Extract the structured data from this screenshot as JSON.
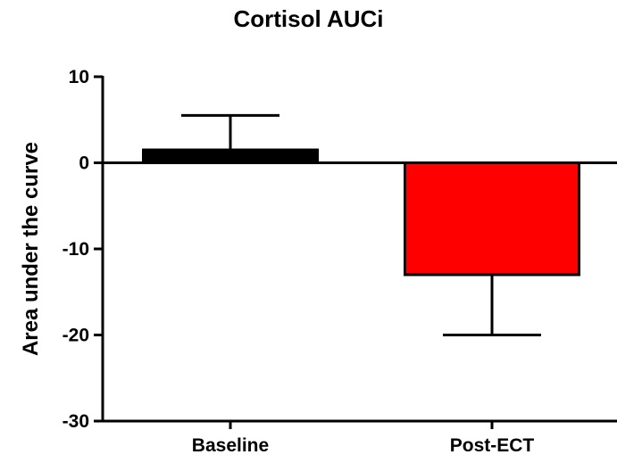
{
  "chart_data": {
    "type": "bar",
    "title": "Cortisol AUCi",
    "xlabel": "",
    "ylabel": "Area under the curve",
    "categories": [
      "Baseline",
      "Post-ECT"
    ],
    "values": [
      1.5,
      -13
    ],
    "error_bars": [
      4,
      7
    ],
    "bar_colors": [
      "#000000",
      "#ff0000"
    ],
    "ylim": [
      -30,
      10
    ],
    "yticks": [
      10,
      0,
      -10,
      -20,
      -30
    ],
    "grid": false,
    "legend": false
  }
}
